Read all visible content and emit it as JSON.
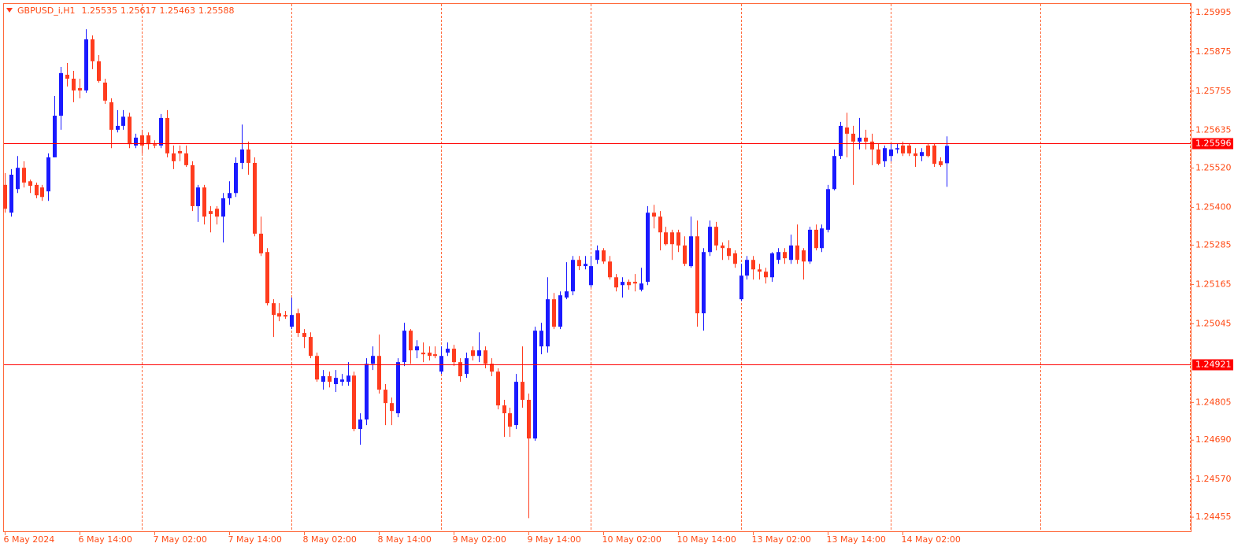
{
  "chart_data": {
    "type": "candlestick",
    "title": "GBPUSD_i,H1",
    "categories": [
      "6 May 2024",
      null,
      null,
      null,
      null,
      null,
      null,
      null,
      null,
      null,
      null,
      null,
      "6 May 14:00",
      null,
      null,
      null,
      null,
      null,
      null,
      null,
      null,
      null,
      null,
      null,
      "7 May 02:00",
      null,
      null,
      null,
      null,
      null,
      null,
      null,
      null,
      null,
      null,
      null,
      "7 May 14:00",
      null,
      null,
      null,
      null,
      null,
      null,
      null,
      null,
      null,
      null,
      null,
      "8 May 02:00",
      null,
      null,
      null,
      null,
      null,
      null,
      null,
      null,
      null,
      null,
      null,
      "8 May 14:00",
      null,
      null,
      null,
      null,
      null,
      null,
      null,
      null,
      null,
      null,
      null,
      "9 May 02:00",
      null,
      null,
      null,
      null,
      null,
      null,
      null,
      null,
      null,
      null,
      null,
      "9 May 14:00",
      null,
      null,
      null,
      null,
      null,
      null,
      null,
      null,
      null,
      null,
      null,
      "10 May 02:00",
      null,
      null,
      null,
      null,
      null,
      null,
      null,
      null,
      null,
      null,
      null,
      "10 May 14:00",
      null,
      null,
      null,
      null,
      null,
      null,
      null,
      null,
      null,
      null,
      null,
      "13 May 02:00",
      null,
      null,
      null,
      null,
      null,
      null,
      null,
      null,
      null,
      null,
      null,
      "13 May 14:00",
      null,
      null,
      null,
      null,
      null,
      null,
      null,
      null,
      null,
      null,
      null,
      "14 May 02:00",
      null,
      null,
      null,
      null,
      null,
      null,
      null
    ],
    "open": [
      1.25469,
      1.25384,
      1.25456,
      1.25521,
      1.2548,
      1.25469,
      1.25461,
      1.25449,
      1.25553,
      1.2568,
      1.25805,
      1.25793,
      1.25764,
      1.25757,
      1.25913,
      1.25846,
      1.25781,
      1.25721,
      1.25637,
      1.25649,
      1.25677,
      1.25589,
      1.2562,
      1.2562,
      1.25593,
      1.25589,
      1.25673,
      1.25565,
      1.25572,
      1.25565,
      1.25529,
      1.25404,
      1.25461,
      1.25389,
      1.25396,
      1.25372,
      1.25428,
      1.25444,
      1.25536,
      1.25577,
      1.25536,
      1.2532,
      1.25264,
      1.25108,
      1.25077,
      1.25072,
      1.25036,
      1.25077,
      1.25017,
      1.25005,
      1.24947,
      1.24868,
      1.24885,
      1.24861,
      1.24868,
      1.24868,
      1.24887,
      1.24724,
      1.24753,
      1.24923,
      1.24947,
      1.24844,
      1.24803,
      1.24772,
      1.24928,
      1.25024,
      1.24964,
      1.24957,
      1.24957,
      1.24952,
      1.24899,
      1.24957,
      1.24969,
      1.24928,
      1.24892,
      1.24964,
      1.24947,
      1.24964,
      1.24923,
      1.24899,
      1.24796,
      1.24772,
      1.24736,
      1.24868,
      1.24813,
      1.24695,
      1.24976,
      1.24976,
      1.2512,
      1.25036,
      1.25125,
      1.25144,
      1.2524,
      1.25221,
      1.25163,
      1.2524,
      1.25269,
      1.25235,
      1.25187,
      1.25163,
      1.25173,
      1.25173,
      1.25149,
      1.25173,
      1.25384,
      1.25372,
      1.25324,
      1.25324,
      1.25324,
      1.25284,
      1.25221,
      1.25312,
      1.25077,
      1.25264,
      1.25341,
      1.25284,
      1.25276,
      1.2526,
      1.2512,
      1.25192,
      1.2524,
      1.25211,
      1.25204,
      1.25187,
      1.2524,
      1.25264,
      1.2524,
      1.25284,
      1.25269,
      1.25235,
      1.25332,
      1.25276,
      1.25332,
      1.25456,
      1.25557,
      1.25644,
      1.25625,
      1.25601,
      1.25613,
      1.25601,
      1.25577,
      1.25541,
      1.25557,
      1.25577,
      1.25589,
      1.25589,
      1.25565,
      1.25557,
      1.25589,
      1.25589,
      1.25541,
      1.25535
    ],
    "high": [
      1.25505,
      1.25517,
      1.25557,
      1.25541,
      1.25485,
      1.25476,
      1.25469,
      1.25565,
      1.2574,
      1.25829,
      1.25841,
      1.25817,
      1.25793,
      1.25944,
      1.25925,
      1.25865,
      1.25793,
      1.25733,
      1.25697,
      1.25697,
      1.25689,
      1.25625,
      1.25637,
      1.25629,
      1.25605,
      1.25685,
      1.25697,
      1.25589,
      1.25589,
      1.25589,
      1.25541,
      1.25469,
      1.25469,
      1.25404,
      1.25404,
      1.25444,
      1.2548,
      1.25553,
      1.25653,
      1.25601,
      1.25553,
      1.25372,
      1.25276,
      1.2512,
      1.25108,
      1.25084,
      1.25125,
      1.25091,
      1.25029,
      1.25019,
      1.24957,
      1.24904,
      1.24899,
      1.24904,
      1.24892,
      1.24928,
      1.24899,
      1.24772,
      1.2494,
      1.24976,
      1.25012,
      1.24861,
      1.2482,
      1.2494,
      1.25048,
      1.25029,
      1.24995,
      1.24988,
      1.24976,
      1.24976,
      1.24976,
      1.24988,
      1.24981,
      1.2494,
      1.24957,
      1.24976,
      1.25019,
      1.24976,
      1.2494,
      1.24909,
      1.24813,
      1.24789,
      1.24892,
      1.24976,
      1.24832,
      1.25036,
      1.25048,
      1.25187,
      1.25139,
      1.25144,
      1.25233,
      1.25252,
      1.25252,
      1.25252,
      1.25252,
      1.25284,
      1.25276,
      1.25252,
      1.25197,
      1.25187,
      1.2518,
      1.25197,
      1.25216,
      1.25404,
      1.25408,
      1.25389,
      1.25341,
      1.25332,
      1.25332,
      1.25312,
      1.25372,
      1.2536,
      1.25276,
      1.2536,
      1.25356,
      1.25293,
      1.253,
      1.25269,
      1.25228,
      1.25252,
      1.25252,
      1.25228,
      1.25216,
      1.25264,
      1.25276,
      1.25276,
      1.25317,
      1.25348,
      1.25276,
      1.25341,
      1.25348,
      1.25348,
      1.25469,
      1.25577,
      1.25661,
      1.25689,
      1.25649,
      1.25673,
      1.25637,
      1.25625,
      1.25596,
      1.25589,
      1.25596,
      1.25596,
      1.25601,
      1.25596,
      1.25581,
      1.25581,
      1.25596,
      1.25596,
      1.25553,
      1.25617
    ],
    "low": [
      1.25384,
      1.25372,
      1.25444,
      1.25461,
      1.25444,
      1.25428,
      1.2542,
      1.2542,
      1.25553,
      1.25637,
      1.25769,
      1.25721,
      1.25733,
      1.2575,
      1.25822,
      1.25781,
      1.25716,
      1.25581,
      1.25629,
      1.25637,
      1.25581,
      1.25581,
      1.25565,
      1.25577,
      1.25581,
      1.25581,
      1.25553,
      1.25517,
      1.25541,
      1.25524,
      1.25389,
      1.25356,
      1.25348,
      1.25324,
      1.25348,
      1.25293,
      1.25408,
      1.25432,
      1.25517,
      1.255,
      1.25312,
      1.25252,
      1.25101,
      1.25005,
      1.25053,
      1.2506,
      1.25029,
      1.25005,
      1.24971,
      1.2494,
      1.24868,
      1.24844,
      1.24851,
      1.24837,
      1.24856,
      1.24856,
      1.24717,
      1.24676,
      1.24736,
      1.24904,
      1.24832,
      1.24736,
      1.24736,
      1.2476,
      1.24916,
      1.24923,
      1.2494,
      1.24928,
      1.24933,
      1.2494,
      1.24892,
      1.24947,
      1.24916,
      1.24868,
      1.2488,
      1.24933,
      1.24928,
      1.24909,
      1.24885,
      1.24784,
      1.247,
      1.247,
      1.24724,
      1.24789,
      1.24452,
      1.24688,
      1.24952,
      1.24957,
      1.25029,
      1.25029,
      1.2512,
      1.25132,
      1.25209,
      1.25211,
      1.25156,
      1.25228,
      1.25228,
      1.2518,
      1.25144,
      1.25125,
      1.25149,
      1.25144,
      1.25144,
      1.25163,
      1.25336,
      1.25269,
      1.25284,
      1.2524,
      1.25264,
      1.25221,
      1.25216,
      1.25036,
      1.25024,
      1.25252,
      1.25269,
      1.2524,
      1.2524,
      1.25216,
      1.25115,
      1.2518,
      1.2518,
      1.2518,
      1.25168,
      1.25173,
      1.25228,
      1.25228,
      1.25228,
      1.25228,
      1.2518,
      1.25228,
      1.25269,
      1.25264,
      1.25324,
      1.25452,
      1.25548,
      1.25553,
      1.25469,
      1.25577,
      1.25577,
      1.25529,
      1.25529,
      1.25524,
      1.25541,
      1.25565,
      1.25557,
      1.25557,
      1.25524,
      1.25541,
      1.25553,
      1.25524,
      1.25524,
      1.25463
    ],
    "close": [
      1.25396,
      1.255,
      1.25521,
      1.25476,
      1.25466,
      1.25437,
      1.25432,
      1.25553,
      1.2568,
      1.2581,
      1.25793,
      1.25757,
      1.25757,
      1.25913,
      1.25846,
      1.25786,
      1.25726,
      1.25637,
      1.25649,
      1.25677,
      1.25593,
      1.25613,
      1.25589,
      1.25593,
      1.25589,
      1.25673,
      1.25565,
      1.25541,
      1.25565,
      1.25529,
      1.25404,
      1.25461,
      1.25372,
      1.2538,
      1.25372,
      1.25428,
      1.25444,
      1.25536,
      1.25577,
      1.25536,
      1.2532,
      1.2526,
      1.25108,
      1.25072,
      1.25067,
      1.25067,
      1.25072,
      1.25017,
      1.25005,
      1.24947,
      1.24875,
      1.24885,
      1.24868,
      1.2488,
      1.24875,
      1.24887,
      1.24724,
      1.24753,
      1.24923,
      1.24947,
      1.24844,
      1.24803,
      1.24779,
      1.24928,
      1.25024,
      1.24964,
      1.24976,
      1.24952,
      1.24947,
      1.24947,
      1.24947,
      1.24969,
      1.24928,
      1.24885,
      1.2494,
      1.24947,
      1.24964,
      1.24923,
      1.24899,
      1.24796,
      1.24772,
      1.24731,
      1.24868,
      1.24813,
      1.24695,
      1.25024,
      1.25024,
      1.2512,
      1.25036,
      1.25132,
      1.25144,
      1.2524,
      1.25221,
      1.25228,
      1.25221,
      1.25269,
      1.25235,
      1.25187,
      1.25156,
      1.25173,
      1.25163,
      1.25168,
      1.25168,
      1.25384,
      1.25372,
      1.25324,
      1.25288,
      1.25288,
      1.25284,
      1.25228,
      1.25312,
      1.25077,
      1.25264,
      1.25341,
      1.25284,
      1.25276,
      1.25252,
      1.25228,
      1.25192,
      1.2524,
      1.25211,
      1.25204,
      1.25187,
      1.2526,
      1.25264,
      1.25245,
      1.25284,
      1.2524,
      1.25235,
      1.25332,
      1.25276,
      1.25336,
      1.25456,
      1.25557,
      1.25649,
      1.25625,
      1.25601,
      1.25613,
      1.25601,
      1.25577,
      1.25533,
      1.25581,
      1.25577,
      1.25581,
      1.25565,
      1.25565,
      1.25557,
      1.25569,
      1.25557,
      1.25533,
      1.25529,
      1.25588
    ],
    "up_color": "#1a1aff",
    "down_color": "#ff3c1e",
    "hlines": [
      1.25596,
      1.24921
    ],
    "hline_color": "#ff0000",
    "ylim": [
      1.24412,
      1.26021
    ],
    "yticks": [
      1.25995,
      1.25875,
      1.25755,
      1.25635,
      {
        "value": 1.2552,
        "label": "1.25520"
      },
      {
        "value": 1.254,
        "label": "1.25400"
      },
      1.25285,
      1.25165,
      1.25045,
      1.24805,
      {
        "value": 1.2469,
        "label": "1.24690"
      },
      {
        "value": 1.2457,
        "label": "1.24570"
      },
      1.24455
    ],
    "grid": false
  }
}
